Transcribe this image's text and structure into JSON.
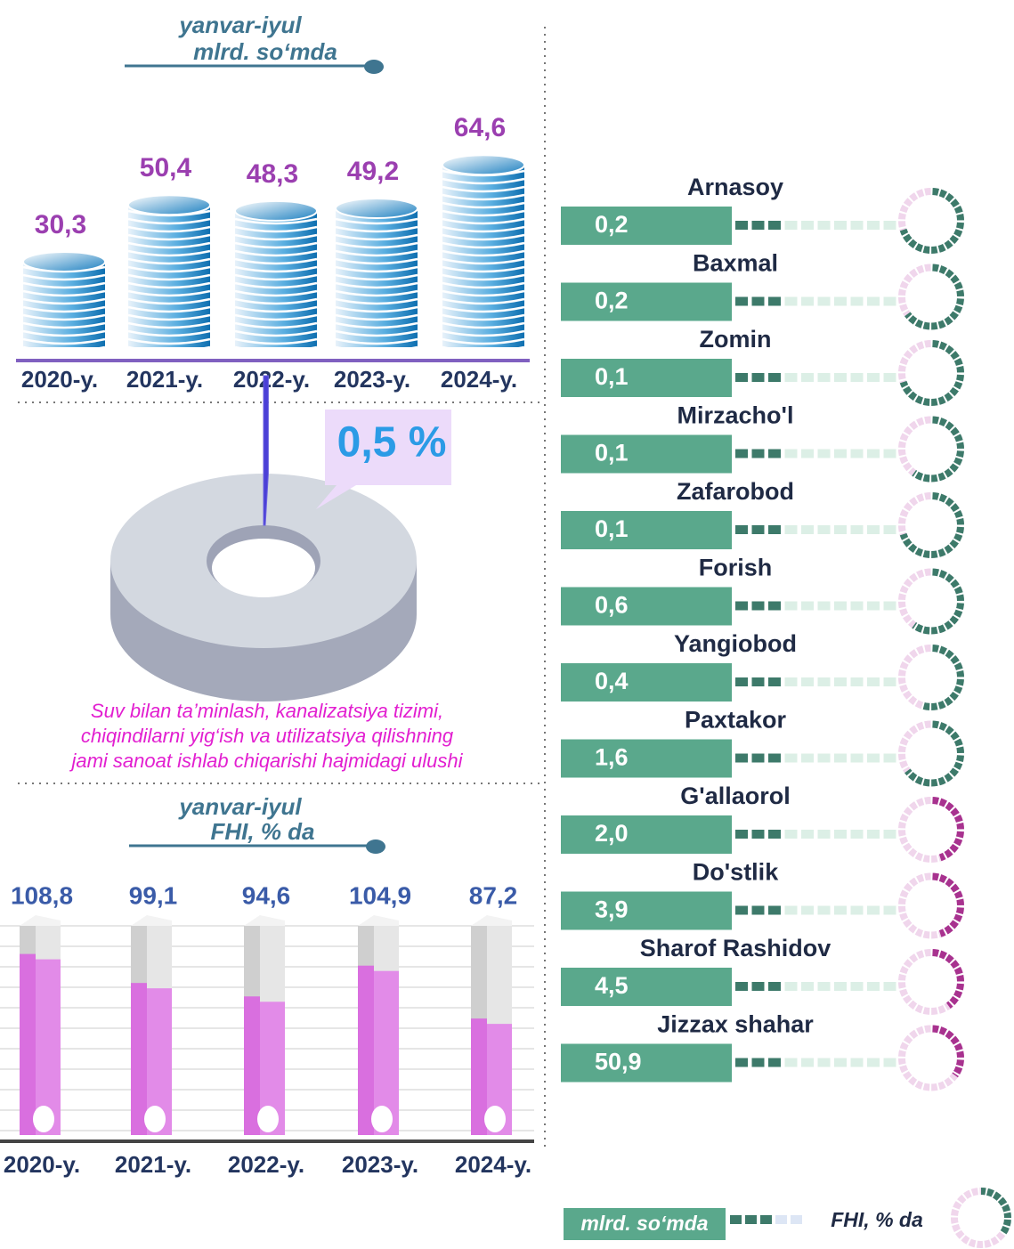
{
  "chart_data": [
    {
      "type": "coins",
      "title_lines": [
        "yanvar-iyul",
        "mlrd. so‘mda"
      ],
      "categories": [
        "2020-y.",
        "2021-y.",
        "2022-y.",
        "2023-y.",
        "2024-y."
      ],
      "values": [
        30.3,
        50.4,
        48.3,
        49.2,
        64.6
      ],
      "value_labels": [
        "30,3",
        "50,4",
        "48,3",
        "49,2",
        "64,6"
      ],
      "color": "#1b7fc0",
      "label_color": "#9b3fb0"
    },
    {
      "type": "pie",
      "values": [
        0.5
      ],
      "value_labels": [
        "0,5 %"
      ],
      "color": "#4a3fd6",
      "caption_lines": [
        "Suv bilan ta’minlash, kanalizatsiya tizimi,",
        "chiqindilarni yig‘ish va utilizatsiya qilishning",
        "jami sanoat ishlab chiqarishi hajmidagi ulushi"
      ]
    },
    {
      "type": "tubes",
      "title_lines": [
        "yanvar-iyul",
        "FHI, % da"
      ],
      "categories": [
        "2020-y.",
        "2021-y.",
        "2022-y.",
        "2023-y.",
        "2024-y."
      ],
      "values": [
        108.8,
        99.1,
        94.6,
        104.9,
        87.2
      ],
      "value_labels": [
        "108,8",
        "99,1",
        "94,6",
        "104,9",
        "87,2"
      ],
      "ylim": [
        50,
        120
      ],
      "color": "#e28be8",
      "grid": true
    },
    {
      "type": "district-rings",
      "categories": [
        "Arnasoy",
        "Baxmal",
        "Zomin",
        "Mirzacho'l",
        "Zafarobod",
        "Forish",
        "Yangiobod",
        "Paxtakor",
        "G'allaorol",
        "Do'stlik",
        "Sharof Rashidov",
        "Jizzax shahar"
      ],
      "series": [
        {
          "name": "mlrd. so‘mda",
          "color": "#5aa88c",
          "values": [
            0.2,
            0.2,
            0.1,
            0.1,
            0.1,
            0.6,
            0.4,
            1.6,
            2.0,
            3.9,
            4.5,
            50.9
          ],
          "value_labels": [
            "0,2",
            "0,2",
            "0,1",
            "0,1",
            "0,1",
            "0,6",
            "0,4",
            "1,6",
            "2,0",
            "3,9",
            "4,5",
            "50,9"
          ]
        },
        {
          "name": "FHI, % da",
          "color": "#3d7a6a",
          "values": [
            70,
            65,
            70,
            60,
            70,
            60,
            55,
            65,
            45,
            45,
            40,
            35
          ],
          "colors": [
            "#3d7a6a",
            "#3d7a6a",
            "#3d7a6a",
            "#3d7a6a",
            "#3d7a6a",
            "#3d7a6a",
            "#3d7a6a",
            "#3d7a6a",
            "#a8328f",
            "#a8328f",
            "#a8328f",
            "#a8328f"
          ]
        }
      ]
    }
  ]
}
